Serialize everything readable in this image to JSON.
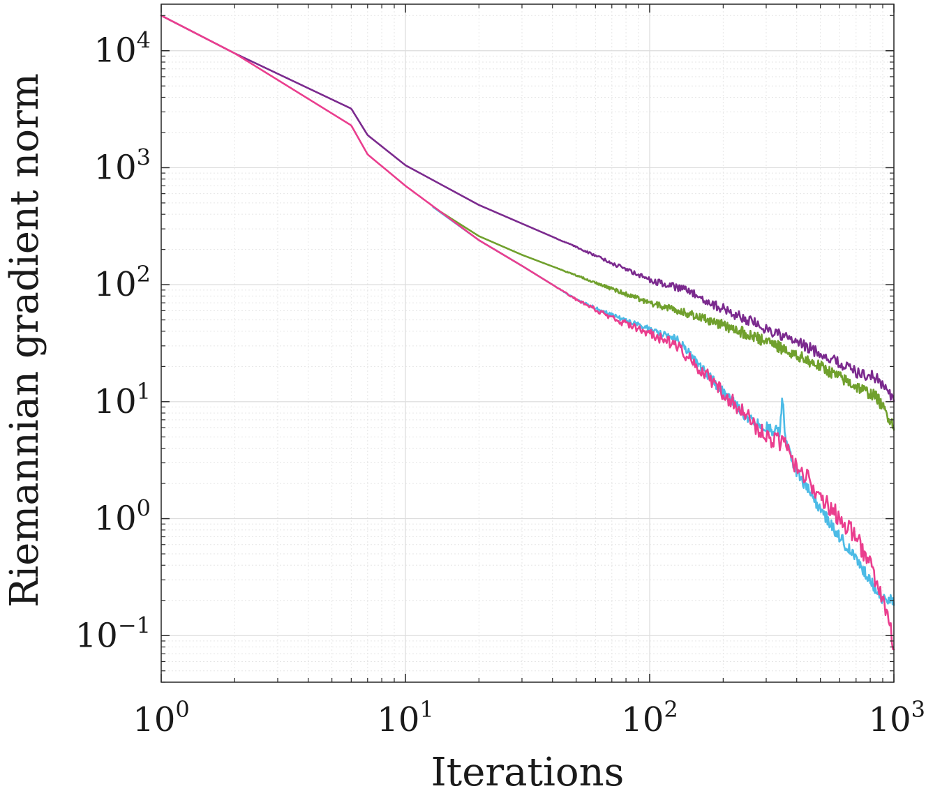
{
  "chart_data": {
    "type": "line",
    "xlabel": "Iterations",
    "ylabel": "Riemannian gradient norm",
    "xscale": "log",
    "yscale": "log",
    "xlim": [
      1,
      1000
    ],
    "ylim": [
      0.04,
      25000
    ],
    "grid": true,
    "legend": "none",
    "x_ticks": [
      {
        "value": 1,
        "base": "10",
        "exp": "0"
      },
      {
        "value": 10,
        "base": "10",
        "exp": "1"
      },
      {
        "value": 100,
        "base": "10",
        "exp": "2"
      },
      {
        "value": 1000,
        "base": "10",
        "exp": "3"
      }
    ],
    "y_ticks": [
      {
        "value": 0.1,
        "base": "10",
        "exp": "−1"
      },
      {
        "value": 1,
        "base": "10",
        "exp": "0"
      },
      {
        "value": 10,
        "base": "10",
        "exp": "1"
      },
      {
        "value": 100,
        "base": "10",
        "exp": "2"
      },
      {
        "value": 1000,
        "base": "10",
        "exp": "3"
      },
      {
        "value": 10000,
        "base": "10",
        "exp": "4"
      }
    ],
    "series": [
      {
        "color": "#7b2a8e",
        "noise": 0.05,
        "x": [
          1,
          2,
          6,
          7,
          10,
          20,
          50,
          100,
          140,
          200,
          300,
          500,
          700,
          850,
          1000
        ],
        "y": [
          20000,
          9500,
          3200,
          1900,
          1050,
          480,
          210,
          110,
          90,
          62,
          42,
          26,
          18,
          16,
          10.5
        ]
      },
      {
        "color": "#70a02d",
        "noise": 0.05,
        "x": [
          13,
          20,
          30,
          50,
          100,
          150,
          200,
          300,
          500,
          700,
          850,
          1000
        ],
        "y": [
          460,
          260,
          180,
          120,
          70,
          55,
          45,
          33,
          20,
          13.5,
          11,
          6.2
        ]
      },
      {
        "color": "#4cbbe6",
        "noise": 0.05,
        "x": [
          13,
          20,
          30,
          50,
          70,
          100,
          130,
          200,
          250,
          300,
          340,
          350,
          360,
          400,
          500,
          600,
          700,
          800,
          900,
          1000
        ],
        "y": [
          460,
          240,
          145,
          75,
          55,
          42,
          34,
          12,
          7.5,
          6,
          5.5,
          11,
          4.5,
          2.5,
          1.2,
          0.7,
          0.45,
          0.3,
          0.2,
          0.2
        ]
      },
      {
        "color": "#ea3e8e",
        "noise": 0.08,
        "x": [
          1,
          2,
          6,
          7,
          10,
          20,
          30,
          50,
          70,
          100,
          130,
          200,
          300,
          350,
          400,
          500,
          600,
          700,
          800,
          900,
          1000
        ],
        "y": [
          20000,
          9500,
          2300,
          1300,
          700,
          240,
          145,
          75,
          52,
          38,
          30,
          12,
          5,
          4.5,
          2.8,
          1.6,
          1.0,
          0.7,
          0.4,
          0.2,
          0.085
        ]
      }
    ]
  }
}
